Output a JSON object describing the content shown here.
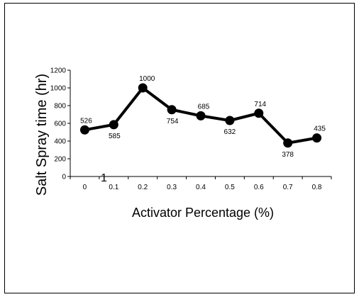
{
  "chart_data": {
    "type": "line",
    "title": "",
    "xlabel": "Activator Percentage (%)",
    "ylabel": "Salt Spray time (hr)",
    "x": [
      0,
      0.1,
      0.2,
      0.3,
      0.4,
      0.5,
      0.6,
      0.7,
      0.8
    ],
    "x_tick_labels": [
      "0",
      "0.1",
      "0.2",
      "0.3",
      "0.4",
      "0.5",
      "0.6",
      "0.7",
      "0.8"
    ],
    "y_tick_labels": [
      "0",
      "200",
      "400",
      "600",
      "800",
      "1000",
      "1200"
    ],
    "series": [
      {
        "values": [
          526,
          585,
          1000,
          754,
          685,
          632,
          714,
          378,
          435
        ]
      }
    ],
    "data_labels": [
      "526",
      "585",
      "1000",
      "754",
      "685",
      "632",
      "714",
      "378",
      "435"
    ],
    "ylim": [
      0,
      1200
    ],
    "y_tick_step": 200,
    "grid": false,
    "legend": "none",
    "stray_text": "1",
    "line_color": "#000000",
    "marker_color": "#000000"
  }
}
